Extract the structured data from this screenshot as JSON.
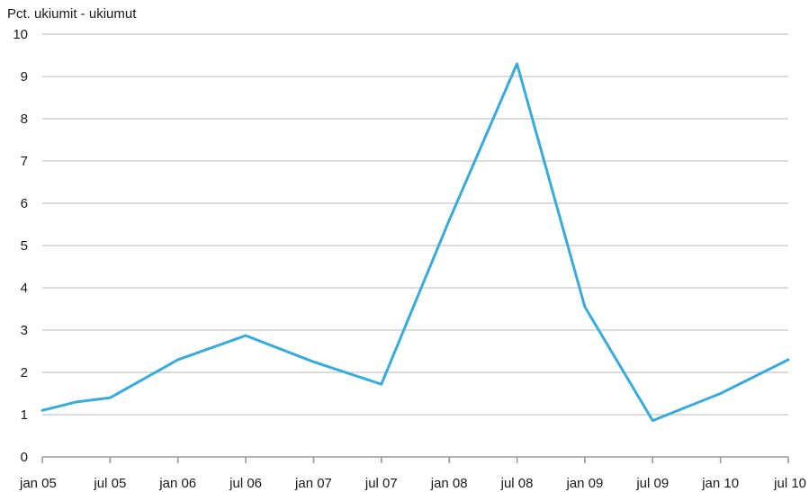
{
  "chart_data": {
    "type": "line",
    "unit_label": "Pct. ukiumit - ukiumut",
    "x": [
      "jan 05",
      "jul 05",
      "jan 06",
      "jul 06",
      "jan 07",
      "jul 07",
      "jan 08",
      "jul 08",
      "jan 09",
      "jul 09",
      "jan 10",
      "jul 10"
    ],
    "series": [
      {
        "points": [
          {
            "x": "jan 05",
            "y": 1.1
          },
          {
            "x": "apr 05",
            "y": 1.3
          },
          {
            "x": "jul 05",
            "y": 1.4
          },
          {
            "x": "jan 06",
            "y": 2.3
          },
          {
            "x": "jul 06",
            "y": 2.87
          },
          {
            "x": "jan 07",
            "y": 2.25
          },
          {
            "x": "jul 07",
            "y": 1.72
          },
          {
            "x": "jan 08",
            "y": 5.6
          },
          {
            "x": "jul 08",
            "y": 9.3
          },
          {
            "x": "jan 09",
            "y": 3.55
          },
          {
            "x": "jul 09",
            "y": 0.86
          },
          {
            "x": "jan 10",
            "y": 1.5
          },
          {
            "x": "jul 10",
            "y": 2.3
          }
        ],
        "color": "#3aaad8"
      }
    ],
    "ylim": [
      0,
      10
    ],
    "yticks": [
      0,
      1,
      2,
      3,
      4,
      5,
      6,
      7,
      8,
      9,
      10
    ],
    "grid": true,
    "legend": "none"
  }
}
